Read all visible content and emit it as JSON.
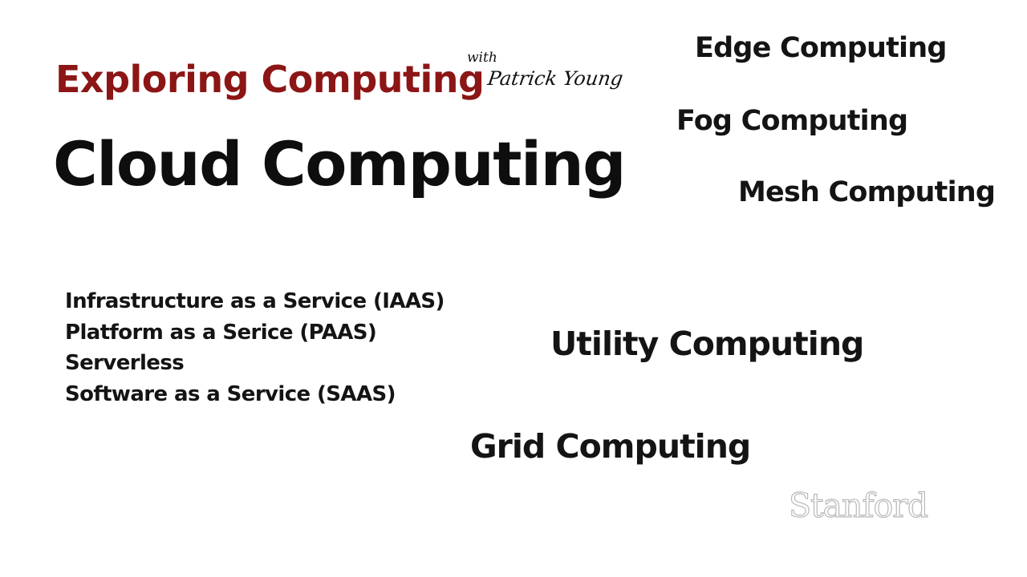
{
  "slide": {
    "series_title": "Exploring Computing",
    "with_label": "with",
    "presenter": "Patrick Young",
    "main_title": "Cloud Computing",
    "terms": {
      "edge": "Edge Computing",
      "fog": "Fog Computing",
      "mesh": "Mesh Computing",
      "utility": "Utility Computing",
      "grid": "Grid Computing"
    },
    "services": [
      "Infrastructure as a Service (IAAS)",
      "Platform as a Serice (PAAS)",
      "Serverless",
      "Software as a Service (SAAS)"
    ],
    "logo": "Stanford"
  },
  "colors": {
    "brand": "#8c1515",
    "text": "#111111",
    "logo_outline": "#b9b9b9",
    "background": "#ffffff"
  }
}
